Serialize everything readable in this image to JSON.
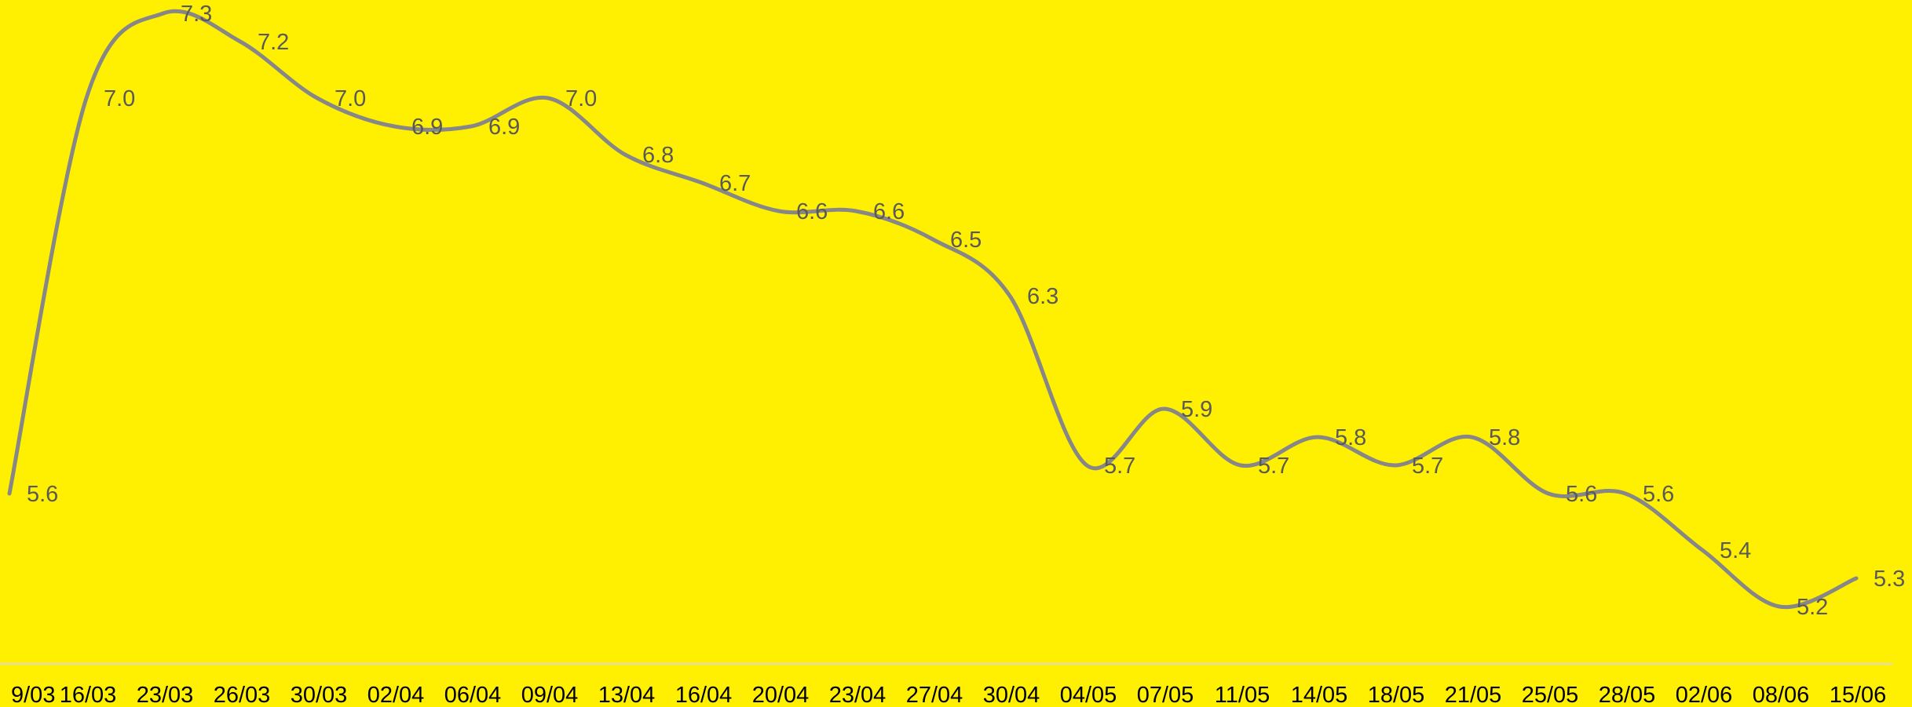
{
  "chart_data": {
    "type": "line",
    "title": "",
    "xlabel": "",
    "ylabel": "",
    "categories": [
      "9/03",
      "16/03",
      "23/03",
      "26/03",
      "30/03",
      "02/04",
      "06/04",
      "09/04",
      "13/04",
      "16/04",
      "20/04",
      "23/04",
      "27/04",
      "30/04",
      "04/05",
      "07/05",
      "11/05",
      "14/05",
      "18/05",
      "21/05",
      "25/05",
      "28/05",
      "02/06",
      "08/06",
      "15/06"
    ],
    "series": [
      {
        "values": [
          5.6,
          7.0,
          7.3,
          7.2,
          7.0,
          6.9,
          6.9,
          7.0,
          6.8,
          6.7,
          6.6,
          6.6,
          6.5,
          6.3,
          5.7,
          5.9,
          5.7,
          5.8,
          5.7,
          5.8,
          5.6,
          5.6,
          5.4,
          5.2,
          5.3
        ],
        "labels": [
          "5.6",
          "7.0",
          "7.3",
          "7.2",
          "7.0",
          "6.9",
          "6.9",
          "7.0",
          "6.8",
          "6.7",
          "6.6",
          "6.6",
          "6.5",
          "6.3",
          "5.7",
          "5.9",
          "5.7",
          "5.8",
          "5.7",
          "5.8",
          "5.6",
          "5.6",
          "5.4",
          "5.2",
          "5.3"
        ],
        "color": "#878787"
      }
    ],
    "ylim": [
      4.9,
      7.35
    ],
    "smooth": true,
    "grid": false,
    "legend": "none",
    "colors": {
      "background": "#FFEF00",
      "line": "#878787",
      "axis": "#D9D9D9",
      "label": "#595959",
      "tick": "#000000"
    }
  }
}
